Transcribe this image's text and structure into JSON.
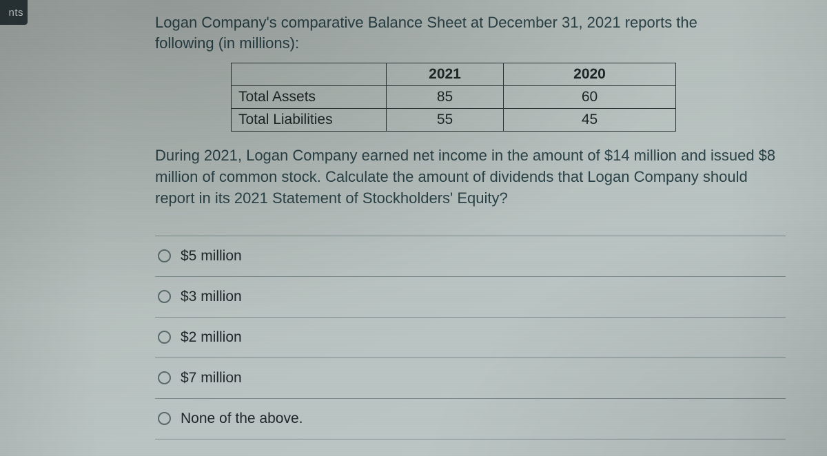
{
  "gutter_label": "nts",
  "question": {
    "intro_line1": "Logan Company's comparative Balance Sheet at December 31, 2021 reports the",
    "intro_line2": "following (in millions):",
    "followup": "During 2021, Logan Company earned net income in the amount of $14 million and issued $8 million of common stock. Calculate the amount of dividends that Logan Company should report in its 2021 Statement of Stockholders' Equity?"
  },
  "balance_sheet": {
    "columns": [
      "",
      "2021",
      "2020"
    ],
    "rows": [
      {
        "label": "Total Assets",
        "y2021": "85",
        "y2020": "60"
      },
      {
        "label": "Total Liabilities",
        "y2021": "55",
        "y2020": "45"
      }
    ],
    "border_color": "#2e3638",
    "text_color": "#1f2526",
    "font_size_pt": 16
  },
  "options": [
    {
      "label": "$5 million"
    },
    {
      "label": "$3 million"
    },
    {
      "label": "$2 million"
    },
    {
      "label": "$7 million"
    },
    {
      "label": "None of the above."
    }
  ],
  "style": {
    "bg_gradient_from": "#aeb5b2",
    "bg_gradient_to": "#bec8c6",
    "question_text_color": "#2a4247",
    "option_text_color": "#20272a",
    "divider_color": "#7d8b8b",
    "radio_border_color": "#5a6a6c",
    "gutter_bg": "#2e3a3d",
    "gutter_text": "#d4dedb",
    "font_family": "Segoe UI / Helvetica Neue / Arial",
    "body_font_size_pt": 16
  }
}
